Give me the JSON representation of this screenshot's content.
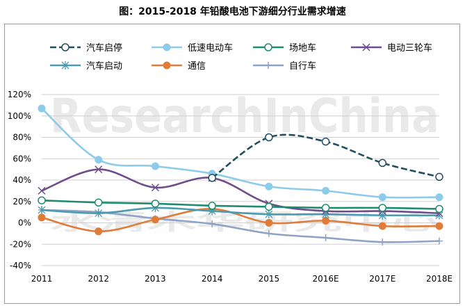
{
  "title": "图：2015-2018 年铅酸电池下游细分行业需求增速",
  "watermark": {
    "en": "ResearchInChina",
    "cn": "水清木华研究中心"
  },
  "chart_data": {
    "type": "line",
    "title": "图：2015-2018 年铅酸电池下游细分行业需求增速",
    "categories": [
      "2011",
      "2012",
      "2013",
      "2014",
      "2015",
      "2016E",
      "2017E",
      "2018E"
    ],
    "y_tick_labels": [
      "-40%",
      "-20%",
      "0%",
      "20%",
      "40%",
      "60%",
      "80%",
      "100%",
      "120%"
    ],
    "ylim": [
      -40,
      120
    ],
    "yunit": "%",
    "grid": true,
    "legend_position": "top",
    "series": [
      {
        "name": "汽车启停",
        "color": "#1f4e5f",
        "marker": "circle-open",
        "dashed": true,
        "values": [
          null,
          null,
          null,
          42,
          80,
          76,
          56,
          43
        ]
      },
      {
        "name": "低速电动车",
        "color": "#8ccbea",
        "marker": "circle-filled",
        "dashed": false,
        "values": [
          107,
          59,
          53,
          46,
          34,
          30,
          24,
          24
        ]
      },
      {
        "name": "场地车",
        "color": "#1e8c6e",
        "marker": "circle-open",
        "dashed": false,
        "values": [
          21,
          19,
          18,
          16,
          15,
          14,
          14,
          13
        ]
      },
      {
        "name": "电动三轮车",
        "color": "#6e4d8c",
        "marker": "x",
        "dashed": false,
        "values": [
          30,
          50,
          33,
          42,
          18,
          11,
          11,
          9
        ]
      },
      {
        "name": "汽车启动",
        "color": "#4a9bb0",
        "marker": "star",
        "dashed": false,
        "values": [
          12,
          9,
          14,
          11,
          8,
          8,
          7,
          7
        ]
      },
      {
        "name": "通信",
        "color": "#e07b39",
        "marker": "circle-filled",
        "dashed": false,
        "values": [
          5,
          -8,
          3,
          13,
          0,
          2,
          -3,
          -3
        ]
      },
      {
        "name": "自行车",
        "color": "#8ea2c6",
        "marker": "plus",
        "dashed": false,
        "values": [
          12,
          10,
          4,
          -1,
          -10,
          -14,
          -18,
          -17
        ]
      }
    ]
  }
}
